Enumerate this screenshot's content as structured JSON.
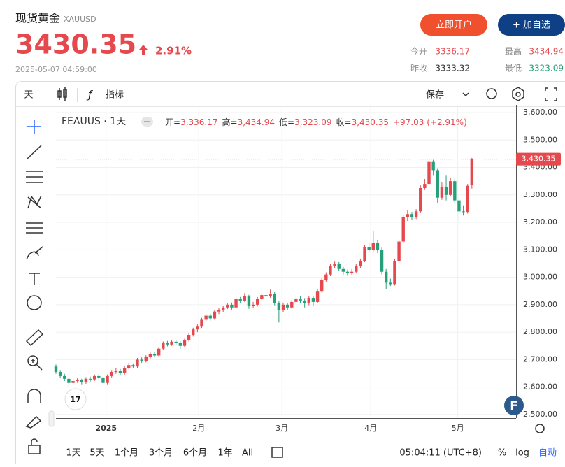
{
  "header": {
    "name": "现货黄金",
    "symbol": "XAUUSD",
    "price": "3430.35",
    "change": "2.91%",
    "timestamp": "2025-05-07 04:59:00",
    "buttons": [
      "立即开户",
      "+ 加自选"
    ],
    "stats": [
      {
        "label": "今开",
        "value": "3336.17"
      },
      {
        "label": "最高",
        "value": "3434.94"
      },
      {
        "label": "昨收",
        "value": "3333.32"
      },
      {
        "label": "最低",
        "value": "3323.09"
      }
    ]
  },
  "toolbar": {
    "interval": "天",
    "indicators": "指标",
    "save": "保存"
  },
  "footer": {
    "ranges": [
      "1天",
      "5天",
      "1个月",
      "3个月",
      "6个月",
      "1年",
      "All"
    ],
    "time": "05:04:11 (UTC+8)",
    "options": [
      "%",
      "log",
      "自动"
    ]
  },
  "chart_data": {
    "type": "candlestick",
    "title": "FEAUUS · 1天",
    "legend": [
      {
        "key": "开=",
        "value": "3,336.17"
      },
      {
        "key": "高=",
        "value": "3,434.94"
      },
      {
        "key": "低=",
        "value": "3,323.09"
      },
      {
        "key": "收=",
        "value": "3,430.35"
      }
    ],
    "legend_change": "+97.03 (+2.91%)",
    "up_color": "#e5484d",
    "down_color": "#26a07a",
    "last_price": {
      "value": 3430.35,
      "label": "3,430.35"
    },
    "ylim": [
      2487,
      3628
    ],
    "yticks": [
      {
        "value": 2500,
        "label": "2,500.00"
      },
      {
        "value": 2600,
        "label": "2,600.00"
      },
      {
        "value": 2700,
        "label": "2,700.00"
      },
      {
        "value": 2800,
        "label": "2,800.00"
      },
      {
        "value": 2900,
        "label": "2,900.00"
      },
      {
        "value": 3000,
        "label": "3,000.00"
      },
      {
        "value": 3100,
        "label": "3,100.00"
      },
      {
        "value": 3200,
        "label": "3,200.00"
      },
      {
        "value": 3300,
        "label": "3,300.00"
      },
      {
        "value": 3400,
        "label": "3,400.00"
      },
      {
        "value": 3500,
        "label": "3,500.00"
      },
      {
        "value": 3600,
        "label": "3,600.00"
      }
    ],
    "xlim": [
      0,
      107.3
    ],
    "xticks": [
      {
        "value": 11.7,
        "label": "2025"
      },
      {
        "value": 33.3,
        "label": "2月"
      },
      {
        "value": 52.7,
        "label": "3月"
      },
      {
        "value": 73.4,
        "label": "4月"
      },
      {
        "value": 93.7,
        "label": "5月"
      }
    ],
    "ohlc": [
      [
        2675,
        2682,
        2648,
        2655
      ],
      [
        2655,
        2662,
        2632,
        2640
      ],
      [
        2640,
        2648,
        2622,
        2630
      ],
      [
        2630,
        2636,
        2600,
        2615
      ],
      [
        2615,
        2630,
        2608,
        2622
      ],
      [
        2622,
        2632,
        2615,
        2625
      ],
      [
        2625,
        2630,
        2610,
        2618
      ],
      [
        2618,
        2636,
        2612,
        2630
      ],
      [
        2630,
        2638,
        2620,
        2628
      ],
      [
        2628,
        2646,
        2622,
        2640
      ],
      [
        2640,
        2648,
        2628,
        2635
      ],
      [
        2635,
        2640,
        2605,
        2615
      ],
      [
        2615,
        2646,
        2610,
        2640
      ],
      [
        2640,
        2662,
        2635,
        2655
      ],
      [
        2655,
        2668,
        2648,
        2660
      ],
      [
        2660,
        2666,
        2642,
        2650
      ],
      [
        2650,
        2676,
        2645,
        2670
      ],
      [
        2670,
        2688,
        2664,
        2680
      ],
      [
        2680,
        2686,
        2668,
        2675
      ],
      [
        2675,
        2706,
        2670,
        2700
      ],
      [
        2700,
        2708,
        2688,
        2695
      ],
      [
        2695,
        2716,
        2690,
        2710
      ],
      [
        2710,
        2726,
        2704,
        2720
      ],
      [
        2720,
        2728,
        2708,
        2715
      ],
      [
        2715,
        2746,
        2710,
        2740
      ],
      [
        2740,
        2766,
        2735,
        2760
      ],
      [
        2760,
        2768,
        2748,
        2755
      ],
      [
        2755,
        2772,
        2750,
        2765
      ],
      [
        2765,
        2772,
        2752,
        2760
      ],
      [
        2760,
        2766,
        2740,
        2750
      ],
      [
        2750,
        2776,
        2745,
        2770
      ],
      [
        2770,
        2796,
        2765,
        2790
      ],
      [
        2790,
        2816,
        2784,
        2810
      ],
      [
        2810,
        2828,
        2800,
        2820
      ],
      [
        2820,
        2852,
        2815,
        2845
      ],
      [
        2845,
        2866,
        2838,
        2860
      ],
      [
        2860,
        2868,
        2842,
        2850
      ],
      [
        2850,
        2882,
        2845,
        2875
      ],
      [
        2875,
        2888,
        2866,
        2880
      ],
      [
        2880,
        2896,
        2872,
        2890
      ],
      [
        2890,
        2906,
        2884,
        2900
      ],
      [
        2900,
        2908,
        2882,
        2890
      ],
      [
        2890,
        2942,
        2886,
        2920
      ],
      [
        2920,
        2928,
        2905,
        2915
      ],
      [
        2915,
        2942,
        2910,
        2930
      ],
      [
        2930,
        2936,
        2885,
        2895
      ],
      [
        2895,
        2910,
        2888,
        2900
      ],
      [
        2900,
        2928,
        2894,
        2920
      ],
      [
        2920,
        2942,
        2914,
        2935
      ],
      [
        2935,
        2945,
        2924,
        2930
      ],
      [
        2930,
        2955,
        2925,
        2940
      ],
      [
        2940,
        2946,
        2898,
        2905
      ],
      [
        2905,
        2912,
        2835,
        2880
      ],
      [
        2880,
        2908,
        2872,
        2900
      ],
      [
        2900,
        2906,
        2880,
        2890
      ],
      [
        2890,
        2918,
        2884,
        2910
      ],
      [
        2910,
        2928,
        2902,
        2920
      ],
      [
        2920,
        2930,
        2906,
        2915
      ],
      [
        2915,
        2924,
        2890,
        2905
      ],
      [
        2905,
        2932,
        2898,
        2925
      ],
      [
        2925,
        2930,
        2895,
        2910
      ],
      [
        2910,
        2958,
        2905,
        2950
      ],
      [
        2950,
        2998,
        2944,
        2990
      ],
      [
        2990,
        3018,
        2984,
        3010
      ],
      [
        3010,
        3048,
        3004,
        3040
      ],
      [
        3040,
        3057,
        3032,
        3050
      ],
      [
        3050,
        3055,
        3022,
        3030
      ],
      [
        3030,
        3038,
        3010,
        3020
      ],
      [
        3020,
        3028,
        3005,
        3015
      ],
      [
        3015,
        3030,
        3008,
        3020
      ],
      [
        3020,
        3048,
        3014,
        3040
      ],
      [
        3040,
        3068,
        3034,
        3060
      ],
      [
        3060,
        3118,
        3055,
        3110
      ],
      [
        3110,
        3125,
        3090,
        3100
      ],
      [
        3100,
        3168,
        3094,
        3125
      ],
      [
        3125,
        3135,
        3088,
        3100
      ],
      [
        3100,
        3108,
        3010,
        3020
      ],
      [
        3020,
        3030,
        2958,
        2980
      ],
      [
        2980,
        2995,
        2968,
        2975
      ],
      [
        2975,
        3068,
        2970,
        3060
      ],
      [
        3060,
        3138,
        3055,
        3130
      ],
      [
        3130,
        3228,
        3125,
        3220
      ],
      [
        3220,
        3245,
        3205,
        3230
      ],
      [
        3230,
        3238,
        3208,
        3220
      ],
      [
        3220,
        3248,
        3212,
        3240
      ],
      [
        3240,
        3335,
        3235,
        3325
      ],
      [
        3325,
        3358,
        3318,
        3340
      ],
      [
        3340,
        3500,
        3335,
        3420
      ],
      [
        3420,
        3428,
        3370,
        3390
      ],
      [
        3390,
        3395,
        3270,
        3290
      ],
      [
        3290,
        3345,
        3282,
        3330
      ],
      [
        3330,
        3370,
        3280,
        3300
      ],
      [
        3300,
        3362,
        3294,
        3350
      ],
      [
        3350,
        3360,
        3270,
        3280
      ],
      [
        3280,
        3300,
        3205,
        3240
      ],
      [
        3240,
        3262,
        3225,
        3238
      ],
      [
        3238,
        3340,
        3232,
        3333.32
      ],
      [
        3336.17,
        3434.94,
        3323.09,
        3430.35
      ]
    ]
  }
}
